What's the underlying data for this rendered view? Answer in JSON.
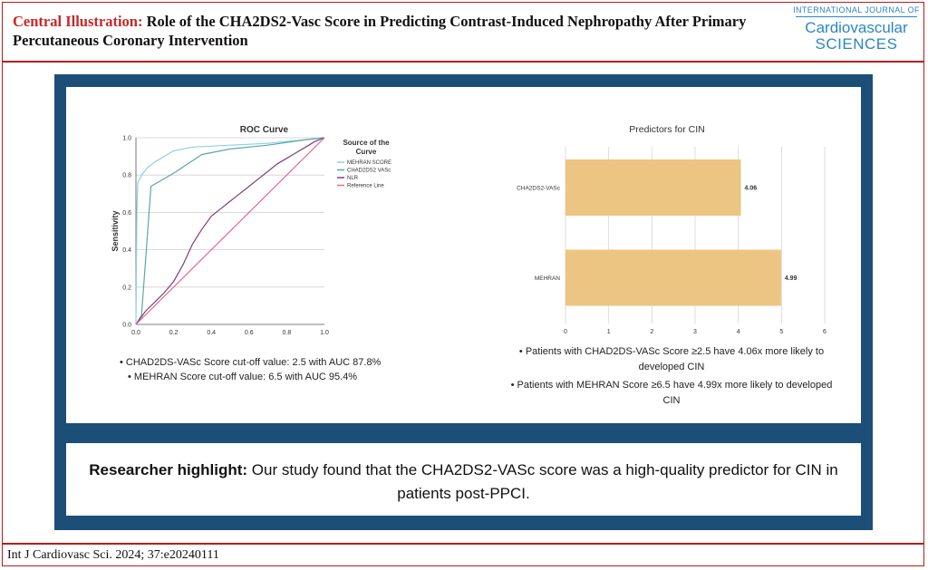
{
  "header": {
    "title_lead": "Central Illustration:",
    "title_rest": "Role of the CHA2DS2-Vasc Score in Predicting Contrast-Induced Nephropathy After Primary Percutaneous Coronary Intervention",
    "journal_line1": "INTERNATIONAL JOURNAL OF",
    "journal_line2": "Cardiovascular",
    "journal_line3": "SCIENCES"
  },
  "roc": {
    "bullets": [
      "• CHAD2DS-VASc Score cut-off value: 2.5 with AUC 87.8%",
      "• MEHRAN Score cut-off value: 6.5 with AUC 95.4%"
    ]
  },
  "bars": {
    "bullets": [
      "• Patients with CHAD2DS-VASc Score ≥2.5 have 4.06x more likely to developed CIN",
      "• Patients with MEHRAN Score ≥6.5 have 4.99x more likely to developed CIN"
    ]
  },
  "highlight": {
    "label": "Researcher highlight:",
    "text": "Our study found that the CHA2DS2-VASc score was a high-quality predictor for CIN in patients post-PPCI."
  },
  "citation": "Int J Cardiovasc Sci. 2024; 37:e20240111",
  "chart_data": [
    {
      "type": "line",
      "title": "ROC Curve",
      "xlabel": "",
      "ylabel": "Sensitivity",
      "xlim": [
        0,
        1
      ],
      "ylim": [
        0,
        1
      ],
      "xticks": [
        "0.0",
        "0.2",
        "0.4",
        "0.6",
        "0.8",
        "1.0"
      ],
      "yticks": [
        "0.0",
        "0.2",
        "0.4",
        "0.6",
        "0.8",
        "1.0"
      ],
      "grid": true,
      "legend_title": "Source of the Curve",
      "legend_position": "right",
      "series": [
        {
          "name": "MEHRAN SCORE",
          "color": "#8fcde8",
          "points": [
            [
              0,
              0
            ],
            [
              0.005,
              0.6
            ],
            [
              0.01,
              0.76
            ],
            [
              0.03,
              0.8
            ],
            [
              0.06,
              0.84
            ],
            [
              0.1,
              0.87
            ],
            [
              0.15,
              0.9
            ],
            [
              0.2,
              0.93
            ],
            [
              0.3,
              0.95
            ],
            [
              0.5,
              0.96
            ],
            [
              0.7,
              0.97
            ],
            [
              0.9,
              0.99
            ],
            [
              1,
              1
            ]
          ]
        },
        {
          "name": "CHAD2DS2 VASc",
          "color": "#5aa9a6",
          "points": [
            [
              0,
              0
            ],
            [
              0.03,
              0.05
            ],
            [
              0.08,
              0.74
            ],
            [
              0.2,
              0.81
            ],
            [
              0.35,
              0.91
            ],
            [
              0.5,
              0.94
            ],
            [
              0.7,
              0.96
            ],
            [
              0.9,
              0.99
            ],
            [
              1,
              1
            ]
          ]
        },
        {
          "name": "NLR",
          "color": "#7b3f7e",
          "points": [
            [
              0,
              0
            ],
            [
              0.05,
              0.07
            ],
            [
              0.1,
              0.12
            ],
            [
              0.15,
              0.17
            ],
            [
              0.2,
              0.23
            ],
            [
              0.25,
              0.32
            ],
            [
              0.3,
              0.43
            ],
            [
              0.35,
              0.51
            ],
            [
              0.4,
              0.58
            ],
            [
              0.45,
              0.62
            ],
            [
              0.5,
              0.66
            ],
            [
              0.55,
              0.7
            ],
            [
              0.6,
              0.74
            ],
            [
              0.65,
              0.78
            ],
            [
              0.7,
              0.82
            ],
            [
              0.75,
              0.86
            ],
            [
              0.8,
              0.89
            ],
            [
              0.85,
              0.92
            ],
            [
              0.9,
              0.95
            ],
            [
              0.95,
              0.98
            ],
            [
              1,
              1
            ]
          ]
        },
        {
          "name": "Reference Line",
          "color": "#e06a8a",
          "points": [
            [
              0,
              0
            ],
            [
              1,
              1
            ]
          ]
        }
      ]
    },
    {
      "type": "bar",
      "orientation": "horizontal",
      "title": "Predictors for CIN",
      "categories": [
        "CHA2DS2-VASc",
        "MEHRAN"
      ],
      "values": [
        4.06,
        4.99
      ],
      "value_labels": [
        "4.06",
        "4.99"
      ],
      "bar_color": "#edc582",
      "xlim": [
        0,
        6
      ],
      "xticks": [
        "0",
        "1",
        "2",
        "3",
        "4",
        "5",
        "6"
      ],
      "grid": true
    }
  ]
}
